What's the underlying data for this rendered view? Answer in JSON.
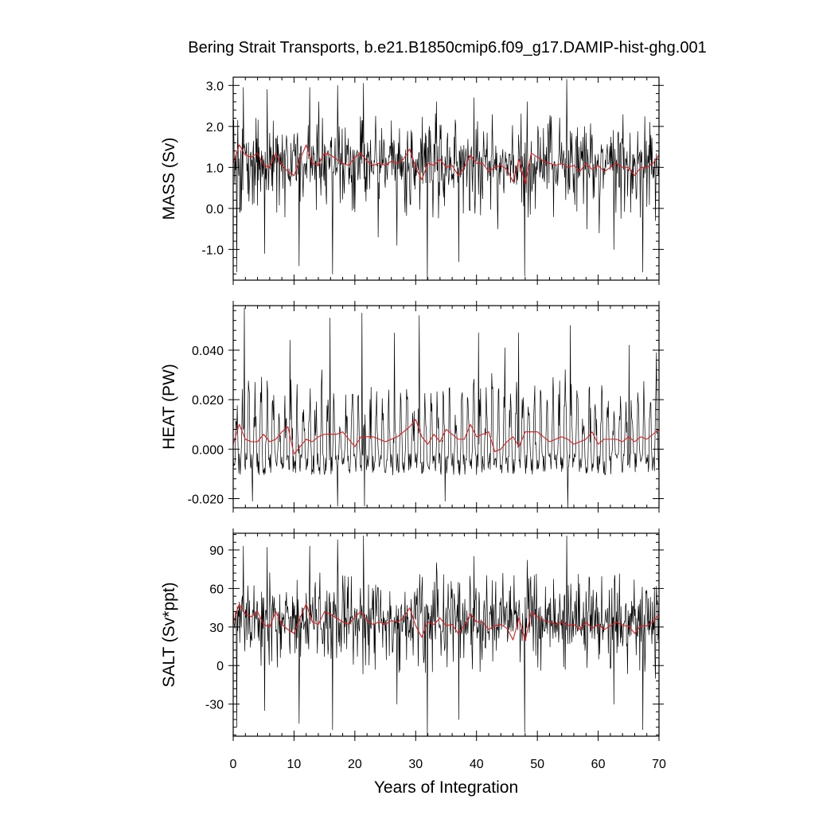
{
  "title": "Bering Strait Transports, b.e21.B1850cmip6.f09_g17.DAMIP-hist-ghg.001",
  "chart_data": [
    {
      "type": "line",
      "ylabel": "MASS (Sv)",
      "ylim": [
        -1.75,
        3.2
      ],
      "yticks": [
        3.0,
        2.0,
        1.0,
        0.0,
        -1.0
      ],
      "ytick_labels": [
        "3.0",
        "2.0",
        "1.0",
        "0.0",
        "-1.0"
      ],
      "xlim": [
        0,
        70
      ],
      "xticks": [
        0,
        10,
        20,
        30,
        40,
        50,
        60,
        70
      ],
      "xtick_labels": [
        "0",
        "10",
        "20",
        "30",
        "40",
        "50",
        "60",
        "70"
      ],
      "series": [
        {
          "color": "#000000",
          "style": "monthly",
          "mean": 1.1,
          "amp": 0.65,
          "extremes": [
            [
              0.6,
              -1.55
            ],
            [
              1.7,
              2.95
            ],
            [
              1.1,
              -0.1
            ],
            [
              5.2,
              -1.1
            ],
            [
              5.6,
              2.9
            ],
            [
              10.8,
              -1.4
            ],
            [
              12.6,
              2.95
            ],
            [
              14.1,
              2.6
            ],
            [
              16.3,
              -1.6
            ],
            [
              17.2,
              3.0
            ],
            [
              21.4,
              3.05
            ],
            [
              23.8,
              -0.7
            ],
            [
              26.9,
              -0.9
            ],
            [
              31.9,
              -1.75
            ],
            [
              33.4,
              2.6
            ],
            [
              37.1,
              -1.3
            ],
            [
              39.6,
              2.7
            ],
            [
              43.5,
              -0.5
            ],
            [
              47.9,
              -1.65
            ],
            [
              48.3,
              2.6
            ],
            [
              54.8,
              3.15
            ],
            [
              58.2,
              -0.5
            ],
            [
              60.2,
              -0.6
            ],
            [
              62.6,
              -1.0
            ],
            [
              67.3,
              -1.55
            ],
            [
              69.4,
              -0.3
            ]
          ]
        },
        {
          "color": "#e41a1c",
          "style": "annual",
          "values": [
            1.1,
            1.55,
            1.3,
            1.25,
            1.35,
            1.05,
            1.0,
            1.35,
            1.05,
            0.9,
            0.8,
            1.2,
            1.55,
            1.1,
            1.05,
            1.35,
            1.3,
            1.2,
            1.1,
            1.05,
            1.25,
            1.35,
            1.15,
            1.05,
            1.1,
            1.05,
            1.15,
            1.1,
            1.2,
            1.45,
            1.0,
            0.7,
            1.1,
            1.05,
            1.2,
            1.0,
            1.05,
            0.8,
            1.0,
            1.3,
            1.1,
            1.1,
            0.9,
            1.0,
            1.05,
            0.95,
            0.65,
            1.2,
            0.6,
            1.35,
            1.25,
            1.15,
            1.1,
            1.05,
            1.1,
            1.0,
            1.05,
            0.9,
            1.1,
            0.95,
            1.05,
            0.9,
            1.0,
            1.1,
            1.0,
            1.0,
            0.8,
            1.0,
            1.0,
            1.1,
            1.3
          ]
        }
      ]
    },
    {
      "type": "line",
      "ylabel": "HEAT (PW)",
      "ylim": [
        -0.0237,
        0.058
      ],
      "yticks": [
        0.04,
        0.02,
        0.0,
        -0.02
      ],
      "ytick_labels": [
        "0.040",
        "0.020",
        "0.000",
        "-0.020"
      ],
      "xlim": [
        0,
        70
      ],
      "xticks": [
        0,
        10,
        20,
        30,
        40,
        50,
        60,
        70
      ],
      "xtick_labels": [
        "0",
        "10",
        "20",
        "30",
        "40",
        "50",
        "60",
        "70"
      ],
      "series": [
        {
          "color": "#000000",
          "style": "seasonal",
          "base": -0.006,
          "peak": 0.03,
          "extremes": [
            [
              1.8,
              0.057
            ],
            [
              9.3,
              0.044
            ],
            [
              15.9,
              0.053
            ],
            [
              21.2,
              0.055
            ],
            [
              26.5,
              0.047
            ],
            [
              30.6,
              0.054
            ],
            [
              40.3,
              0.047
            ],
            [
              44.7,
              0.041
            ],
            [
              46.9,
              0.047
            ],
            [
              55.4,
              0.05
            ],
            [
              65.1,
              0.042
            ],
            [
              69.6,
              0.039
            ],
            [
              17.2,
              -0.023
            ],
            [
              21.6,
              -0.023
            ],
            [
              55.0,
              -0.024
            ],
            [
              3.2,
              -0.021
            ],
            [
              34.8,
              -0.021
            ]
          ]
        },
        {
          "color": "#e41a1c",
          "style": "annual",
          "values": [
            0.002,
            0.01,
            0.004,
            0.003,
            0.003,
            0.006,
            0.003,
            0.004,
            0.007,
            0.009,
            -0.002,
            0.001,
            0.004,
            0.003,
            0.005,
            0.006,
            0.006,
            0.006,
            0.007,
            0.004,
            0.001,
            0.005,
            0.005,
            0.005,
            0.004,
            0.003,
            0.004,
            0.005,
            0.007,
            0.009,
            0.012,
            0.005,
            0.002,
            0.006,
            0.003,
            0.008,
            0.006,
            0.004,
            0.004,
            0.01,
            0.005,
            0.006,
            0.007,
            -0.001,
            0.0,
            0.003,
            0.005,
            0.001,
            0.007,
            0.007,
            0.007,
            0.005,
            0.003,
            0.004,
            0.005,
            0.004,
            0.002,
            0.003,
            0.004,
            0.007,
            0.002,
            0.004,
            0.004,
            0.004,
            0.003,
            0.005,
            0.003,
            0.005,
            0.004,
            0.006,
            0.008
          ]
        }
      ]
    },
    {
      "type": "line",
      "ylabel": "SALT (Sv*ppt)",
      "xlabel": "Years of Integration",
      "ylim": [
        -55,
        103
      ],
      "yticks": [
        90,
        60,
        30,
        0,
        -30
      ],
      "ytick_labels": [
        "90",
        "60",
        "30",
        "0",
        "-30"
      ],
      "xlim": [
        0,
        70
      ],
      "xticks": [
        0,
        10,
        20,
        30,
        40,
        50,
        60,
        70
      ],
      "xtick_labels": [
        "0",
        "10",
        "20",
        "30",
        "40",
        "50",
        "60",
        "70"
      ],
      "series": [
        {
          "color": "#000000",
          "style": "monthly",
          "mean": 35,
          "amp": 20,
          "extremes": [
            [
              0.6,
              -48
            ],
            [
              1.7,
              93
            ],
            [
              5.2,
              -35
            ],
            [
              5.6,
              92
            ],
            [
              10.8,
              -45
            ],
            [
              12.6,
              93
            ],
            [
              16.3,
              -50
            ],
            [
              17.2,
              98
            ],
            [
              21.4,
              101
            ],
            [
              26.9,
              -30
            ],
            [
              31.9,
              -55
            ],
            [
              33.4,
              80
            ],
            [
              37.1,
              -42
            ],
            [
              39.6,
              85
            ],
            [
              47.9,
              -52
            ],
            [
              48.3,
              82
            ],
            [
              54.8,
              101
            ],
            [
              62.6,
              -30
            ],
            [
              67.3,
              -50
            ],
            [
              69.4,
              -10
            ]
          ]
        },
        {
          "color": "#e41a1c",
          "style": "annual",
          "values": [
            33,
            48,
            40,
            38,
            42,
            32,
            30,
            42,
            32,
            28,
            25,
            37,
            48,
            34,
            32,
            42,
            40,
            37,
            34,
            32,
            38,
            42,
            35,
            32,
            34,
            32,
            35,
            34,
            37,
            45,
            31,
            22,
            34,
            32,
            37,
            31,
            32,
            25,
            31,
            40,
            34,
            34,
            28,
            31,
            32,
            29,
            20,
            37,
            19,
            42,
            38,
            35,
            34,
            32,
            34,
            31,
            32,
            28,
            34,
            29,
            32,
            28,
            31,
            34,
            31,
            31,
            25,
            31,
            31,
            34,
            40
          ]
        }
      ]
    }
  ]
}
